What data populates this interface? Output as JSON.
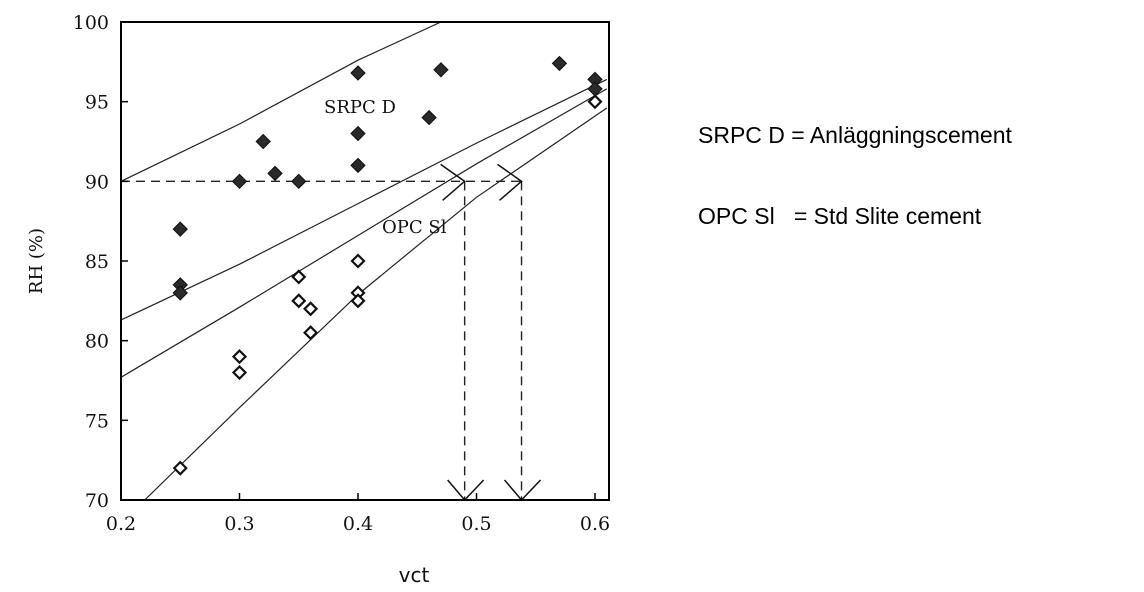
{
  "chart_data": {
    "type": "scatter",
    "xlabel": "vct",
    "ylabel": "RH (%)",
    "xlim": [
      0.2,
      0.61
    ],
    "ylim": [
      70,
      100
    ],
    "x_ticks": [
      "0.2",
      "0.3",
      "0.4",
      "0.5",
      "0.6"
    ],
    "y_ticks": [
      "100",
      "95",
      "90",
      "85",
      "80",
      "75",
      "70"
    ],
    "annotations": [
      "SRPC D",
      "OPC Sl"
    ],
    "legend": [
      "SRPC D = Anläggningscement",
      "OPC Sl   = Std Slite cement"
    ],
    "series": [
      {
        "name": "SRPC D",
        "marker": "filled-diamond",
        "points": [
          [
            0.25,
            87
          ],
          [
            0.25,
            83.5
          ],
          [
            0.25,
            83
          ],
          [
            0.3,
            90
          ],
          [
            0.32,
            92.5
          ],
          [
            0.33,
            90.5
          ],
          [
            0.35,
            90
          ],
          [
            0.4,
            96.8
          ],
          [
            0.4,
            93
          ],
          [
            0.4,
            91
          ],
          [
            0.46,
            94
          ],
          [
            0.47,
            97
          ],
          [
            0.57,
            97.4
          ],
          [
            0.6,
            96.4
          ],
          [
            0.6,
            95.8
          ]
        ]
      },
      {
        "name": "OPC Sl",
        "marker": "open-diamond",
        "points": [
          [
            0.25,
            72
          ],
          [
            0.3,
            79
          ],
          [
            0.3,
            78
          ],
          [
            0.35,
            84
          ],
          [
            0.35,
            82.5
          ],
          [
            0.36,
            82
          ],
          [
            0.36,
            80.5
          ],
          [
            0.4,
            85
          ],
          [
            0.4,
            83
          ],
          [
            0.4,
            82.5
          ],
          [
            0.6,
            95
          ]
        ]
      }
    ],
    "curves": [
      {
        "x": [
          0.2,
          0.3,
          0.4,
          0.47
        ],
        "y": [
          90,
          93.6,
          97.6,
          100
        ]
      },
      {
        "x": [
          0.2,
          0.3,
          0.4,
          0.5,
          0.61
        ],
        "y": [
          81.3,
          84.8,
          88.6,
          92.4,
          96.4
        ]
      },
      {
        "x": [
          0.2,
          0.3,
          0.4,
          0.5,
          0.61
        ],
        "y": [
          77.7,
          82.1,
          86.6,
          91.1,
          95.8
        ]
      },
      {
        "x": [
          0.22,
          0.3,
          0.4,
          0.5,
          0.61
        ],
        "y": [
          70,
          75.8,
          82.9,
          89.0,
          94.6
        ]
      }
    ],
    "reference_lines": [
      {
        "kind": "horizontal",
        "y": 90,
        "x_from": 0.2,
        "x_to": 0.538
      },
      {
        "kind": "vertical",
        "x": 0.49,
        "y_from": 90,
        "y_to": 70
      },
      {
        "kind": "vertical",
        "x": 0.538,
        "y_from": 90,
        "y_to": 70
      }
    ],
    "arrow_points": [
      [
        0.49,
        90
      ],
      [
        0.538,
        90
      ],
      [
        0.49,
        70
      ],
      [
        0.538,
        70
      ]
    ]
  }
}
